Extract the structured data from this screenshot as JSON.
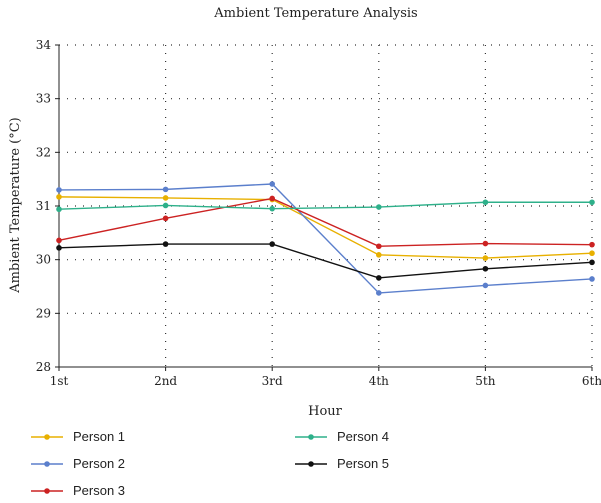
{
  "chart_data": {
    "type": "line",
    "title": "Ambient Temperature Analysis",
    "xlabel": "Hour",
    "ylabel": "Ambient Temperature (°C)",
    "categories": [
      "1st",
      "2nd",
      "3rd",
      "4th",
      "5th",
      "6th"
    ],
    "ylim": [
      28,
      34
    ],
    "yticks": [
      "28",
      "29",
      "30",
      "31",
      "32",
      "33",
      "34"
    ],
    "grid": true,
    "legend_position": "bottom",
    "series": [
      {
        "name": "Person 1",
        "color": "#e8b000",
        "values": [
          31.17,
          31.15,
          31.12,
          30.09,
          30.03,
          30.12
        ]
      },
      {
        "name": "Person 2",
        "color": "#5b7fcc",
        "values": [
          31.3,
          31.31,
          31.41,
          29.38,
          29.52,
          29.64
        ]
      },
      {
        "name": "Person 3",
        "color": "#cc2222",
        "values": [
          30.36,
          30.77,
          31.14,
          30.25,
          30.3,
          30.28
        ]
      },
      {
        "name": "Person 4",
        "color": "#2eb08a",
        "values": [
          30.94,
          31.01,
          30.95,
          30.98,
          31.07,
          31.07
        ]
      },
      {
        "name": "Person 5",
        "color": "#111111",
        "values": [
          30.22,
          30.29,
          30.29,
          29.66,
          29.83,
          29.95
        ]
      }
    ]
  }
}
